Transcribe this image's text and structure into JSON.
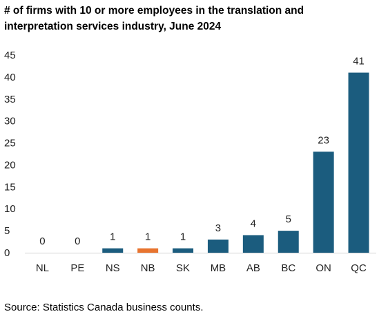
{
  "chart_data": {
    "type": "bar",
    "title": "# of firms with 10 or more employees in the translation and interpretation services industry, June 2024",
    "categories": [
      "NL",
      "PE",
      "NS",
      "NB",
      "SK",
      "MB",
      "AB",
      "BC",
      "ON",
      "QC"
    ],
    "values": [
      0,
      0,
      1,
      1,
      1,
      3,
      4,
      5,
      23,
      41
    ],
    "highlight": "NB",
    "ylim": [
      0,
      45
    ],
    "yticks": [
      0,
      5,
      10,
      15,
      20,
      25,
      30,
      35,
      40,
      45
    ],
    "xlabel": "",
    "ylabel": "",
    "grid": false,
    "colors": {
      "bar": "#1b5c7e",
      "highlight": "#e8742f"
    },
    "source": "Source: Statistics Canada business counts."
  }
}
